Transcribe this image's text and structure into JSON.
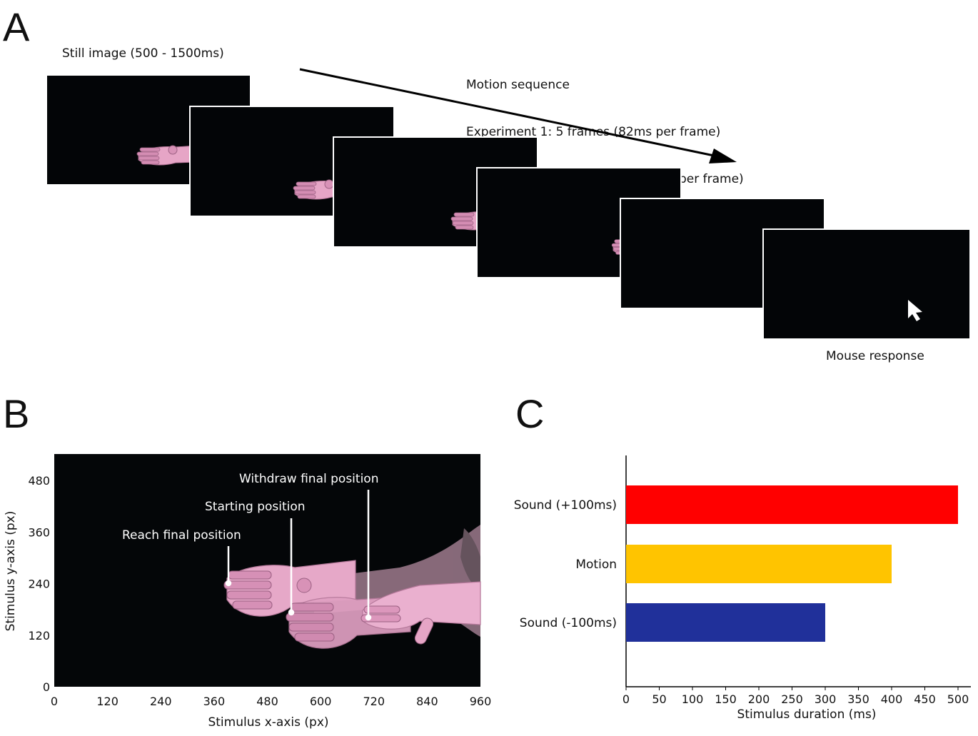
{
  "panel_a": {
    "letter": "A",
    "still_label": "Still image (500 - 1500ms)",
    "motion_label": "Motion sequence",
    "exp1_label": "Experiment 1: 5 frames (82ms per frame)",
    "exp2_label": "Experiment 2: 3,4,5 frames (82ms per frame)",
    "response_label": "Mouse response",
    "frames": [
      "still",
      "motion-1",
      "motion-2",
      "motion-3",
      "motion-4",
      "response"
    ],
    "cursor_icon": "mouse-cursor-icon",
    "arrow_icon": "arrow-right-down-icon"
  },
  "panel_b": {
    "letter": "B",
    "annotations": {
      "reach": "Reach final position",
      "start": "Starting position",
      "withdraw": "Withdraw final position"
    },
    "xlabel": "Stimulus x-axis (px)",
    "ylabel": "Stimulus y-axis (px)",
    "x_ticks": [
      "0",
      "120",
      "240",
      "360",
      "480",
      "600",
      "720",
      "840",
      "960"
    ],
    "y_ticks": [
      "0",
      "120",
      "240",
      "360",
      "480"
    ],
    "hand_color": "#e8a8cc"
  },
  "panel_c": {
    "letter": "C"
  },
  "chart_data": {
    "type": "bar",
    "orientation": "horizontal",
    "categories": [
      "Sound (+100ms)",
      "Motion",
      "Sound (-100ms)"
    ],
    "values": [
      500,
      400,
      300
    ],
    "colors": [
      "#ff0000",
      "#ffc400",
      "#20309a"
    ],
    "xlabel": "Stimulus duration (ms)",
    "ylabel": "",
    "xlim": [
      0,
      500
    ],
    "x_ticks": [
      0,
      50,
      100,
      150,
      200,
      250,
      300,
      350,
      400,
      450,
      500
    ],
    "grid": false
  }
}
